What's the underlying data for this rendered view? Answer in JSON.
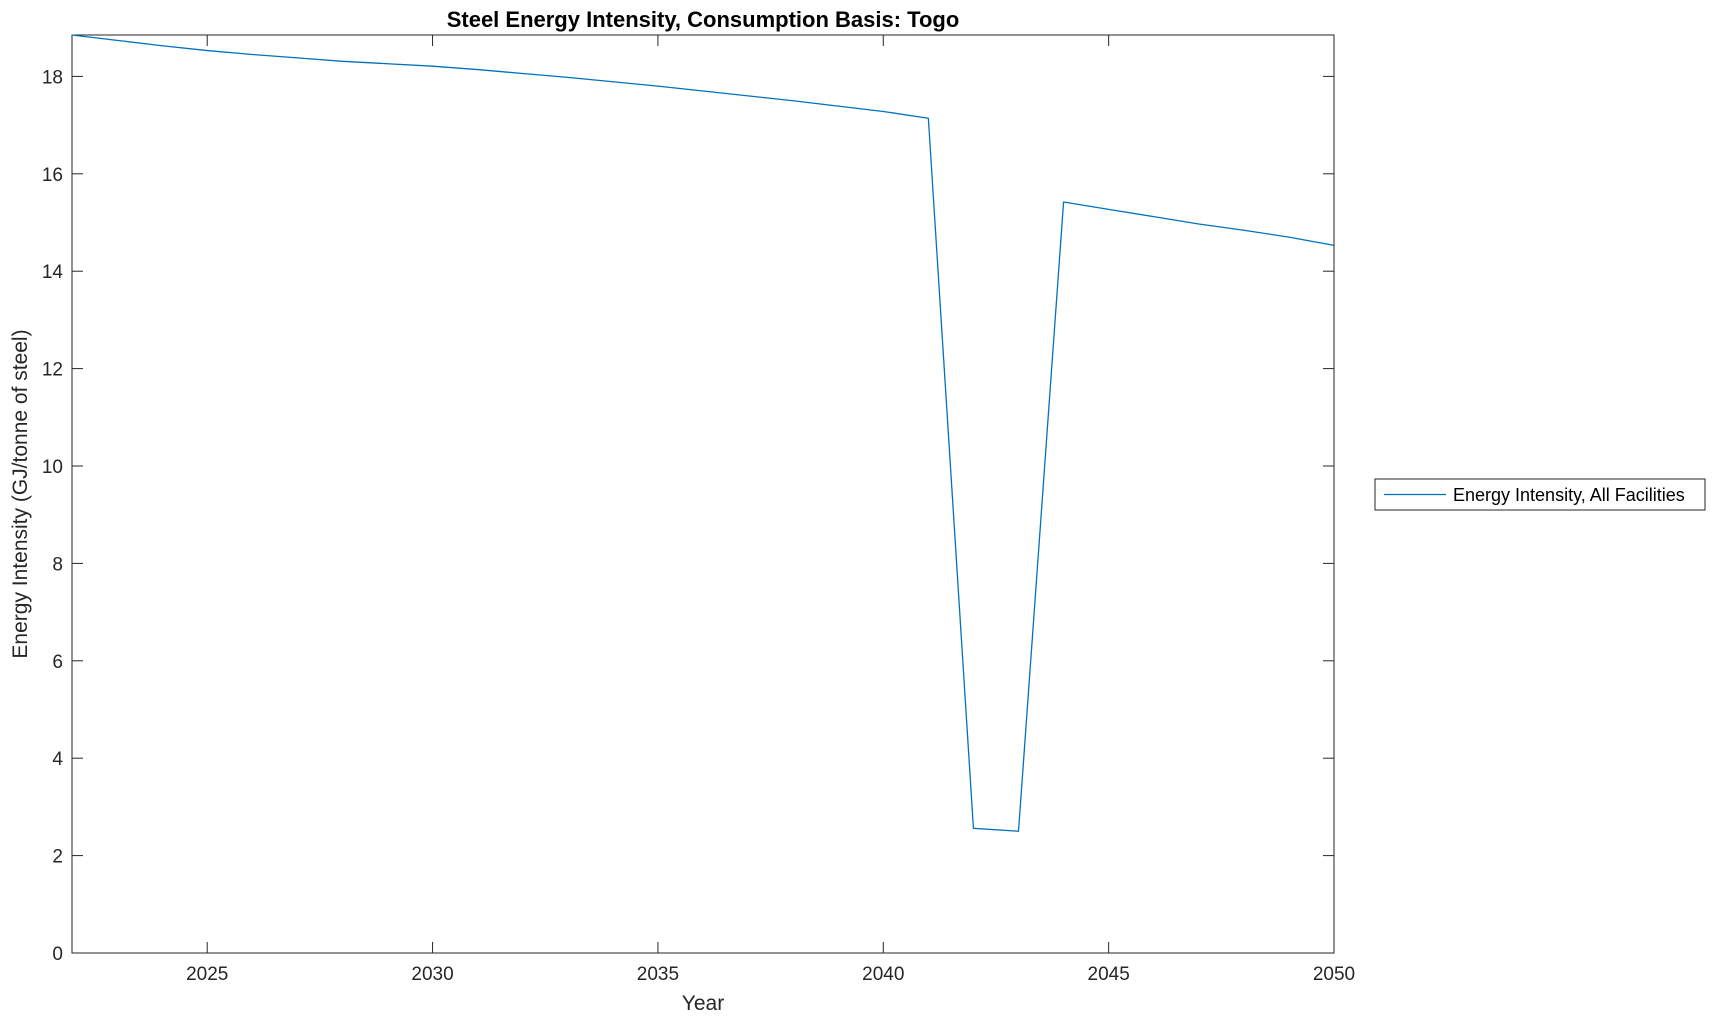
{
  "chart_data": {
    "type": "line",
    "title": "Steel Energy Intensity, Consumption Basis: Togo",
    "xlabel": "Year",
    "ylabel": "Energy Intensity (GJ/tonne of steel)",
    "xlim": [
      2022,
      2050
    ],
    "ylim": [
      0,
      18.85
    ],
    "xticks": [
      2025,
      2030,
      2035,
      2040,
      2045,
      2050
    ],
    "yticks": [
      0,
      2,
      4,
      6,
      8,
      10,
      12,
      14,
      16,
      18
    ],
    "grid": false,
    "legend_position": "outside-right",
    "series": [
      {
        "name": "Energy Intensity, All Facilities",
        "color": "#0072BD",
        "x": [
          2022,
          2023,
          2024,
          2025,
          2026,
          2027,
          2028,
          2029,
          2030,
          2031,
          2032,
          2033,
          2034,
          2035,
          2036,
          2037,
          2038,
          2039,
          2040,
          2041,
          2042,
          2043,
          2044,
          2045,
          2046,
          2047,
          2048,
          2049,
          2050
        ],
        "values": [
          18.85,
          18.74,
          18.63,
          18.53,
          18.45,
          18.38,
          18.31,
          18.26,
          18.21,
          18.14,
          18.06,
          17.98,
          17.89,
          17.8,
          17.7,
          17.6,
          17.5,
          17.39,
          17.28,
          17.14,
          2.56,
          2.5,
          15.42,
          15.27,
          15.12,
          14.97,
          14.84,
          14.7,
          14.53
        ]
      }
    ]
  }
}
